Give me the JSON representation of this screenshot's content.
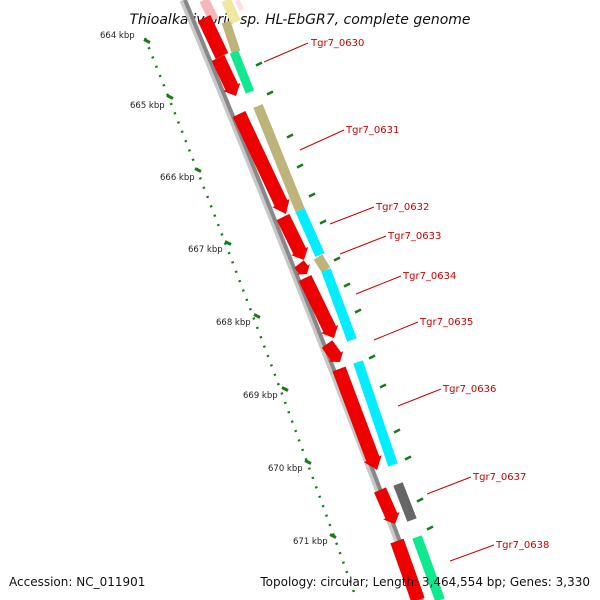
{
  "title": "Thioalkalivibrio sp. HL-EbGR7, complete genome",
  "footer": {
    "accession": "Accession: NC_011901",
    "summary": "Topology: circular; Length: 3,464,554 bp; Genes: 3,330"
  },
  "ruler": [
    {
      "label": "664 kbp"
    },
    {
      "label": "665 kbp"
    },
    {
      "label": "666 kbp"
    },
    {
      "label": "667 kbp"
    },
    {
      "label": "668 kbp"
    },
    {
      "label": "669 kbp"
    },
    {
      "label": "670 kbp"
    },
    {
      "label": "671 kbp"
    }
  ],
  "genes": [
    {
      "label": "Tgr7_0630"
    },
    {
      "label": "Tgr7_0631"
    },
    {
      "label": "Tgr7_0632"
    },
    {
      "label": "Tgr7_0633"
    },
    {
      "label": "Tgr7_0634"
    },
    {
      "label": "Tgr7_0635"
    },
    {
      "label": "Tgr7_0636"
    },
    {
      "label": "Tgr7_0637"
    },
    {
      "label": "Tgr7_0638"
    }
  ],
  "colors": {
    "backbone": "#888888",
    "cds": "#ee0000",
    "cog_khaki": "#bdb47a",
    "cog_cyan": "#00eeff",
    "cog_green": "#10e890",
    "cog_gray": "#666666",
    "tick": "#1a7a1a",
    "label": "#cc0000"
  }
}
